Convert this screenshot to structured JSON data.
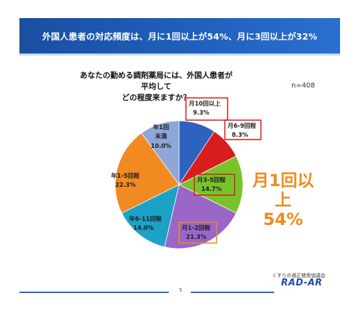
{
  "banner": {
    "title": "外国人患者の対応頻度は、月に1回以上が54%、月に3回以上が32%"
  },
  "question": {
    "line1": "あなたの勤める調剤薬局には、外国人患者が平均して",
    "line2": "どの程度来ますか？"
  },
  "sample": {
    "n_label": "n=408"
  },
  "callout": {
    "line1": "月1回以上",
    "line2": "54%"
  },
  "footer": {
    "page_number": "5",
    "organization": "くすりの適正使用協議会",
    "logo_text": "RAD-AR"
  },
  "colors": {
    "accent": "#f08a1c",
    "banner": "#1e5db8",
    "highlight_box_red": "#e02020",
    "highlight_box_orange": "#f08a1c"
  },
  "chart_data": {
    "type": "pie",
    "title": "あなたの勤める調剤薬局には、外国人患者が平均してどの程度来ますか？",
    "n": 408,
    "slices": [
      {
        "label": "月10回以上",
        "value": 9.3,
        "value_label": "9.3%",
        "color": "#2e62c0",
        "highlight": "red"
      },
      {
        "label": "月6-9回程",
        "value": 8.3,
        "value_label": "8.3%",
        "color": "#d81d1d",
        "highlight": "red"
      },
      {
        "label": "月3-5回程",
        "value": 14.7,
        "value_label": "14.7%",
        "color": "#77c42a",
        "highlight": "red"
      },
      {
        "label": "月1-2回程",
        "value": 21.3,
        "value_label": "21.3%",
        "color": "#9a66c8",
        "highlight": "orange"
      },
      {
        "label": "年6-11回程",
        "value": 14.0,
        "value_label": "14.0%",
        "color": "#1aa3c6",
        "highlight": ""
      },
      {
        "label": "年1-5回程",
        "value": 22.3,
        "value_label": "22.3%",
        "color": "#f28a22",
        "highlight": ""
      },
      {
        "label": "年1回未満",
        "value": 10.0,
        "value_label": "10.0%",
        "color": "#8ea6d8",
        "highlight": ""
      }
    ]
  }
}
